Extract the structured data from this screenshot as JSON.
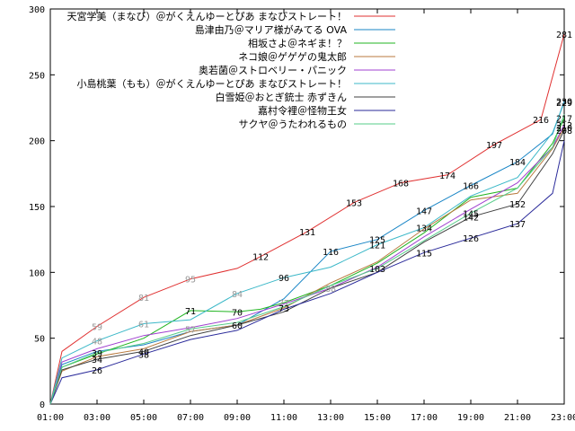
{
  "chart_data": {
    "type": "line",
    "title": "",
    "xlabel": "",
    "ylabel": "",
    "x_ticks": [
      "01:00",
      "03:00",
      "05:00",
      "07:00",
      "09:00",
      "11:00",
      "13:00",
      "15:00",
      "17:00",
      "19:00",
      "21:00",
      "23:00"
    ],
    "x_range_hours": [
      1,
      23
    ],
    "y_ticks": [
      0,
      50,
      100,
      150,
      200,
      250,
      300
    ],
    "ylim": [
      0,
      300
    ],
    "grid": false,
    "legend_position": "top-right",
    "series": [
      {
        "name": "天宮学美（まなび）＠がくえんゆーとぴあ まなびストレート！",
        "color": "#e03030",
        "points": [
          [
            1,
            0
          ],
          [
            1.5,
            40
          ],
          [
            3,
            59
          ],
          [
            5,
            81
          ],
          [
            7,
            95
          ],
          [
            9,
            103
          ],
          [
            10,
            112
          ],
          [
            12,
            131
          ],
          [
            14,
            153
          ],
          [
            16,
            168
          ],
          [
            18,
            174
          ],
          [
            20,
            197
          ],
          [
            22,
            216
          ],
          [
            23,
            281
          ]
        ]
      },
      {
        "name": "島津由乃＠マリア様がみてる OVA",
        "color": "#1a86c6",
        "points": [
          [
            1,
            0
          ],
          [
            1.5,
            30
          ],
          [
            3,
            40
          ],
          [
            5,
            45
          ],
          [
            7,
            55
          ],
          [
            9,
            60
          ],
          [
            11,
            80
          ],
          [
            13,
            116
          ],
          [
            15,
            125
          ],
          [
            17,
            147
          ],
          [
            19,
            166
          ],
          [
            21,
            184
          ],
          [
            22.5,
            205
          ],
          [
            23,
            230
          ]
        ]
      },
      {
        "name": "相坂さよ＠ネギま！？",
        "color": "#22b522",
        "points": [
          [
            1,
            0
          ],
          [
            1.5,
            28
          ],
          [
            3,
            38
          ],
          [
            5,
            50
          ],
          [
            7,
            71
          ],
          [
            9,
            70
          ],
          [
            10,
            72
          ],
          [
            11,
            77
          ],
          [
            13,
            90
          ],
          [
            15,
            107
          ],
          [
            17,
            130
          ],
          [
            19,
            157
          ],
          [
            21,
            164
          ],
          [
            22.5,
            198
          ],
          [
            23,
            217
          ]
        ]
      },
      {
        "name": "ネコ娘＠ゲゲゲの鬼太郎",
        "color": "#b87a3e",
        "points": [
          [
            1,
            0
          ],
          [
            1.5,
            25
          ],
          [
            3,
            36
          ],
          [
            5,
            42
          ],
          [
            7,
            55
          ],
          [
            9,
            60
          ],
          [
            11,
            73
          ],
          [
            13,
            92
          ],
          [
            15,
            108
          ],
          [
            17,
            133
          ],
          [
            19,
            155
          ],
          [
            21,
            160
          ],
          [
            22.5,
            194
          ],
          [
            23,
            210
          ]
        ]
      },
      {
        "name": "奥若菌＠ストロベリー・パニック",
        "color": "#a040d0",
        "points": [
          [
            1,
            0
          ],
          [
            1.5,
            32
          ],
          [
            3,
            42
          ],
          [
            5,
            52
          ],
          [
            7,
            58
          ],
          [
            9,
            65
          ],
          [
            11,
            76
          ],
          [
            13,
            88
          ],
          [
            15,
            104
          ],
          [
            17,
            127
          ],
          [
            19,
            148
          ],
          [
            21,
            168
          ],
          [
            22.5,
            195
          ],
          [
            23,
            212
          ]
        ]
      },
      {
        "name": "小島桃葉（もも）＠がくえんゆーとぴあ まなびストレート！",
        "color": "#3cb8c8",
        "points": [
          [
            1,
            0
          ],
          [
            1.5,
            35
          ],
          [
            3,
            48
          ],
          [
            5,
            61
          ],
          [
            7,
            64
          ],
          [
            9,
            84
          ],
          [
            11,
            96
          ],
          [
            13,
            104
          ],
          [
            15,
            121
          ],
          [
            17,
            134
          ],
          [
            19,
            158
          ],
          [
            21,
            172
          ],
          [
            22.5,
            206
          ],
          [
            23,
            229
          ]
        ]
      },
      {
        "name": "白雪姫＠おとぎ銃士 赤ずきん",
        "color": "#404040",
        "points": [
          [
            1,
            0
          ],
          [
            1.5,
            26
          ],
          [
            3,
            34
          ],
          [
            5,
            40
          ],
          [
            7,
            52
          ],
          [
            9,
            60
          ],
          [
            11,
            70
          ],
          [
            13,
            88
          ],
          [
            15,
            100
          ],
          [
            17,
            123
          ],
          [
            19,
            142
          ],
          [
            21,
            152
          ],
          [
            22.5,
            190
          ],
          [
            23,
            208
          ]
        ]
      },
      {
        "name": "嘉村令裡＠怪物王女",
        "color": "#2a2a9a",
        "points": [
          [
            1,
            0
          ],
          [
            1.5,
            20
          ],
          [
            3,
            26
          ],
          [
            5,
            38
          ],
          [
            7,
            49
          ],
          [
            9,
            56
          ],
          [
            11,
            72
          ],
          [
            13,
            84
          ],
          [
            15,
            100
          ],
          [
            17,
            115
          ],
          [
            19,
            126
          ],
          [
            21,
            137
          ],
          [
            22.5,
            160
          ],
          [
            23,
            200
          ]
        ]
      },
      {
        "name": "サクヤ＠うたわれるもの",
        "color": "#55cc88",
        "points": [
          [
            1,
            0
          ],
          [
            1.5,
            28
          ],
          [
            3,
            39
          ],
          [
            5,
            46
          ],
          [
            7,
            57
          ],
          [
            9,
            62
          ],
          [
            11,
            74
          ],
          [
            13,
            90
          ],
          [
            15,
            103
          ],
          [
            17,
            124
          ],
          [
            19,
            145
          ],
          [
            21,
            164
          ],
          [
            22.5,
            195
          ],
          [
            23,
            220
          ]
        ]
      }
    ],
    "point_labels": [
      {
        "series": 0,
        "x": 3.0,
        "y": 59,
        "text": "59",
        "color": "#999999"
      },
      {
        "series": 0,
        "x": 5.0,
        "y": 81,
        "text": "81",
        "color": "#999999"
      },
      {
        "series": 0,
        "x": 7.0,
        "y": 95,
        "text": "95",
        "color": "#999999"
      },
      {
        "series": 0,
        "x": 10.0,
        "y": 112,
        "text": "112",
        "color": "#000000"
      },
      {
        "series": 0,
        "x": 12.0,
        "y": 131,
        "text": "131",
        "color": "#000000"
      },
      {
        "series": 0,
        "x": 14.0,
        "y": 153,
        "text": "153",
        "color": "#000000"
      },
      {
        "series": 0,
        "x": 16.0,
        "y": 168,
        "text": "168",
        "color": "#000000"
      },
      {
        "series": 0,
        "x": 18.0,
        "y": 174,
        "text": "174",
        "color": "#000000"
      },
      {
        "series": 0,
        "x": 20.0,
        "y": 197,
        "text": "197",
        "color": "#000000"
      },
      {
        "series": 0,
        "x": 22.0,
        "y": 216,
        "text": "216",
        "color": "#000000"
      },
      {
        "series": 0,
        "x": 23.0,
        "y": 281,
        "text": "281",
        "color": "#000000"
      },
      {
        "series": 1,
        "x": 13.0,
        "y": 116,
        "text": "116",
        "color": "#000000"
      },
      {
        "series": 1,
        "x": 15.0,
        "y": 125,
        "text": "125",
        "color": "#000000"
      },
      {
        "series": 1,
        "x": 17.0,
        "y": 147,
        "text": "147",
        "color": "#000000"
      },
      {
        "series": 1,
        "x": 19.0,
        "y": 166,
        "text": "166",
        "color": "#000000"
      },
      {
        "series": 1,
        "x": 21.0,
        "y": 184,
        "text": "184",
        "color": "#000000"
      },
      {
        "series": 1,
        "x": 23.0,
        "y": 230,
        "text": "230",
        "color": "#000000"
      },
      {
        "series": 2,
        "x": 7.0,
        "y": 71,
        "text": "71",
        "color": "#000000"
      },
      {
        "series": 2,
        "x": 9.0,
        "y": 70,
        "text": "70",
        "color": "#000000"
      },
      {
        "series": 2,
        "x": 11.0,
        "y": 77,
        "text": "77",
        "color": "#999999"
      },
      {
        "series": 2,
        "x": 23.0,
        "y": 217,
        "text": "217",
        "color": "#000000"
      },
      {
        "series": 3,
        "x": 9.0,
        "y": 60,
        "text": "60",
        "color": "#000000"
      },
      {
        "series": 3,
        "x": 11.0,
        "y": 73,
        "text": "73",
        "color": "#000000"
      },
      {
        "series": 3,
        "x": 23.0,
        "y": 210,
        "text": "210",
        "color": "#000000"
      },
      {
        "series": 4,
        "x": 13.0,
        "y": 88,
        "text": "88",
        "color": "#999999"
      },
      {
        "series": 4,
        "x": 23.0,
        "y": 212,
        "text": "212",
        "color": "#000000"
      },
      {
        "series": 5,
        "x": 3.0,
        "y": 48,
        "text": "48",
        "color": "#999999"
      },
      {
        "series": 5,
        "x": 5.0,
        "y": 61,
        "text": "61",
        "color": "#999999"
      },
      {
        "series": 5,
        "x": 9.0,
        "y": 84,
        "text": "84",
        "color": "#999999"
      },
      {
        "series": 5,
        "x": 11.0,
        "y": 96,
        "text": "96",
        "color": "#000000"
      },
      {
        "series": 5,
        "x": 15.0,
        "y": 121,
        "text": "121",
        "color": "#000000"
      },
      {
        "series": 5,
        "x": 17.0,
        "y": 134,
        "text": "134",
        "color": "#000000"
      },
      {
        "series": 5,
        "x": 23.0,
        "y": 229,
        "text": "229",
        "color": "#000000"
      },
      {
        "series": 6,
        "x": 3.0,
        "y": 34,
        "text": "34",
        "color": "#000000"
      },
      {
        "series": 6,
        "x": 5.0,
        "y": 40,
        "text": "40",
        "color": "#000000"
      },
      {
        "series": 6,
        "x": 19.0,
        "y": 142,
        "text": "142",
        "color": "#000000"
      },
      {
        "series": 6,
        "x": 21.0,
        "y": 152,
        "text": "152",
        "color": "#000000"
      },
      {
        "series": 6,
        "x": 23.0,
        "y": 208,
        "text": "208",
        "color": "#000000"
      },
      {
        "series": 7,
        "x": 3.0,
        "y": 26,
        "text": "26",
        "color": "#000000"
      },
      {
        "series": 7,
        "x": 5.0,
        "y": 38,
        "text": "38",
        "color": "#000000"
      },
      {
        "series": 7,
        "x": 17.0,
        "y": 115,
        "text": "115",
        "color": "#000000"
      },
      {
        "series": 7,
        "x": 19.0,
        "y": 126,
        "text": "126",
        "color": "#000000"
      },
      {
        "series": 7,
        "x": 21.0,
        "y": 137,
        "text": "137",
        "color": "#000000"
      },
      {
        "series": 8,
        "x": 3.0,
        "y": 39,
        "text": "39",
        "color": "#000000"
      },
      {
        "series": 8,
        "x": 7.0,
        "y": 57,
        "text": "57",
        "color": "#999999"
      },
      {
        "series": 8,
        "x": 15.0,
        "y": 103,
        "text": "103",
        "color": "#000000"
      },
      {
        "series": 8,
        "x": 19.0,
        "y": 145,
        "text": "145",
        "color": "#000000"
      }
    ]
  }
}
